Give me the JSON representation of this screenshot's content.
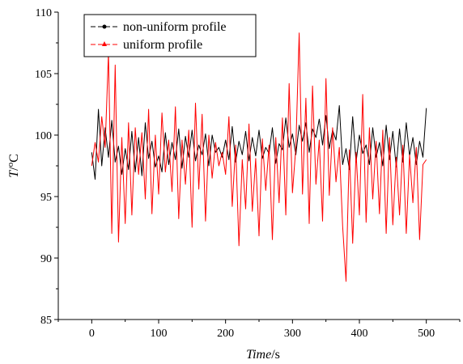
{
  "chart_data": {
    "type": "line",
    "xlabel_main": "Time",
    "xlabel_unit": "/s",
    "ylabel_main": "T",
    "ylabel_unit": "/",
    "ylabel_deg": "o",
    "ylabel_c": "C",
    "xlim": [
      -50,
      550
    ],
    "ylim": [
      85,
      110
    ],
    "xticks": [
      0,
      100,
      200,
      300,
      400,
      500
    ],
    "yticks": [
      85,
      90,
      95,
      100,
      105,
      110
    ],
    "grid": false,
    "legend_position": "top-left",
    "series": [
      {
        "name": "non-uniform profile",
        "color": "#000000",
        "marker": "circle",
        "x": [
          0,
          5,
          10,
          15,
          20,
          25,
          30,
          35,
          40,
          45,
          50,
          55,
          60,
          65,
          70,
          75,
          80,
          85,
          90,
          95,
          100,
          105,
          110,
          115,
          120,
          125,
          130,
          135,
          140,
          145,
          150,
          155,
          160,
          165,
          170,
          175,
          180,
          185,
          190,
          195,
          200,
          205,
          210,
          215,
          220,
          225,
          230,
          235,
          240,
          245,
          250,
          255,
          260,
          265,
          270,
          275,
          280,
          285,
          290,
          295,
          300,
          305,
          310,
          315,
          320,
          325,
          330,
          335,
          340,
          345,
          350,
          355,
          360,
          365,
          370,
          375,
          380,
          385,
          390,
          395,
          400,
          405,
          410,
          415,
          420,
          425,
          430,
          435,
          440,
          445,
          450,
          455,
          460,
          465,
          470,
          475,
          480,
          485,
          490,
          495,
          500
        ],
        "values": [
          98.6,
          96.4,
          102.1,
          97.5,
          100.6,
          98.2,
          101.2,
          97.8,
          99.1,
          96.8,
          98.9,
          97.2,
          100.3,
          97.0,
          99.8,
          96.7,
          101.0,
          98.1,
          99.5,
          97.4,
          98.3,
          97.0,
          100.2,
          97.6,
          99.4,
          98.0,
          100.5,
          97.3,
          99.9,
          98.2,
          100.4,
          97.9,
          99.2,
          98.4,
          100.1,
          97.5,
          100.0,
          98.6,
          99.0,
          98.2,
          99.6,
          98.0,
          100.7,
          97.8,
          99.5,
          98.4,
          100.3,
          97.9,
          99.8,
          98.3,
          100.4,
          98.1,
          99.0,
          98.5,
          100.6,
          97.7,
          99.3,
          98.8,
          101.4,
          99.0,
          100.1,
          98.4,
          100.8,
          99.5,
          101.0,
          98.6,
          100.5,
          99.8,
          101.3,
          99.2,
          101.6,
          98.9,
          100.4,
          99.6,
          102.4,
          97.6,
          98.9,
          97.2,
          101.5,
          97.8,
          100.0,
          98.5,
          99.2,
          97.6,
          100.6,
          98.2,
          99.4,
          97.5,
          100.8,
          98.0,
          100.3,
          97.4,
          100.5,
          97.8,
          101.0,
          98.3,
          99.8,
          97.6,
          99.5,
          98.2,
          102.2
        ]
      },
      {
        "name": "uniform profile",
        "color": "#ff0000",
        "marker": "triangle",
        "x": [
          0,
          5,
          10,
          15,
          20,
          25,
          30,
          35,
          40,
          45,
          50,
          55,
          60,
          65,
          70,
          75,
          80,
          85,
          90,
          95,
          100,
          105,
          110,
          115,
          120,
          125,
          130,
          135,
          140,
          145,
          150,
          155,
          160,
          165,
          170,
          175,
          180,
          185,
          190,
          195,
          200,
          205,
          210,
          215,
          220,
          225,
          230,
          235,
          240,
          245,
          250,
          255,
          260,
          265,
          270,
          275,
          280,
          285,
          290,
          295,
          300,
          305,
          310,
          315,
          320,
          325,
          330,
          335,
          340,
          345,
          350,
          355,
          360,
          365,
          370,
          375,
          380,
          385,
          390,
          395,
          400,
          405,
          410,
          415,
          420,
          425,
          430,
          435,
          440,
          445,
          450,
          455,
          460,
          465,
          470,
          475,
          480,
          485,
          490,
          495,
          500
        ],
        "values": [
          97.5,
          99.4,
          97.8,
          101.5,
          99.0,
          106.7,
          92.0,
          105.7,
          91.3,
          99.8,
          92.8,
          101.0,
          93.5,
          100.6,
          96.8,
          100.2,
          94.8,
          102.1,
          93.6,
          100.0,
          95.2,
          101.8,
          97.0,
          99.6,
          95.4,
          102.3,
          93.2,
          99.6,
          96.0,
          100.4,
          92.5,
          102.6,
          95.6,
          101.7,
          93.0,
          100.0,
          96.5,
          99.4,
          97.5,
          98.6,
          96.8,
          101.5,
          94.2,
          99.2,
          91.0,
          98.0,
          94.0,
          100.9,
          93.8,
          98.1,
          91.8,
          99.7,
          95.5,
          99.2,
          91.5,
          99.8,
          94.5,
          101.4,
          93.5,
          104.2,
          95.3,
          99.0,
          108.3,
          95.2,
          103.0,
          92.8,
          104.0,
          96.0,
          99.6,
          93.0,
          104.6,
          95.1,
          100.6,
          96.2,
          99.0,
          92.6,
          88.1,
          98.8,
          91.2,
          98.6,
          93.5,
          103.3,
          92.9,
          100.6,
          94.8,
          99.5,
          93.6,
          100.4,
          92.0,
          99.8,
          92.7,
          98.2,
          93.5,
          99.2,
          92.0,
          98.4,
          94.5,
          99.0,
          91.5,
          97.6,
          98.0
        ]
      }
    ]
  }
}
